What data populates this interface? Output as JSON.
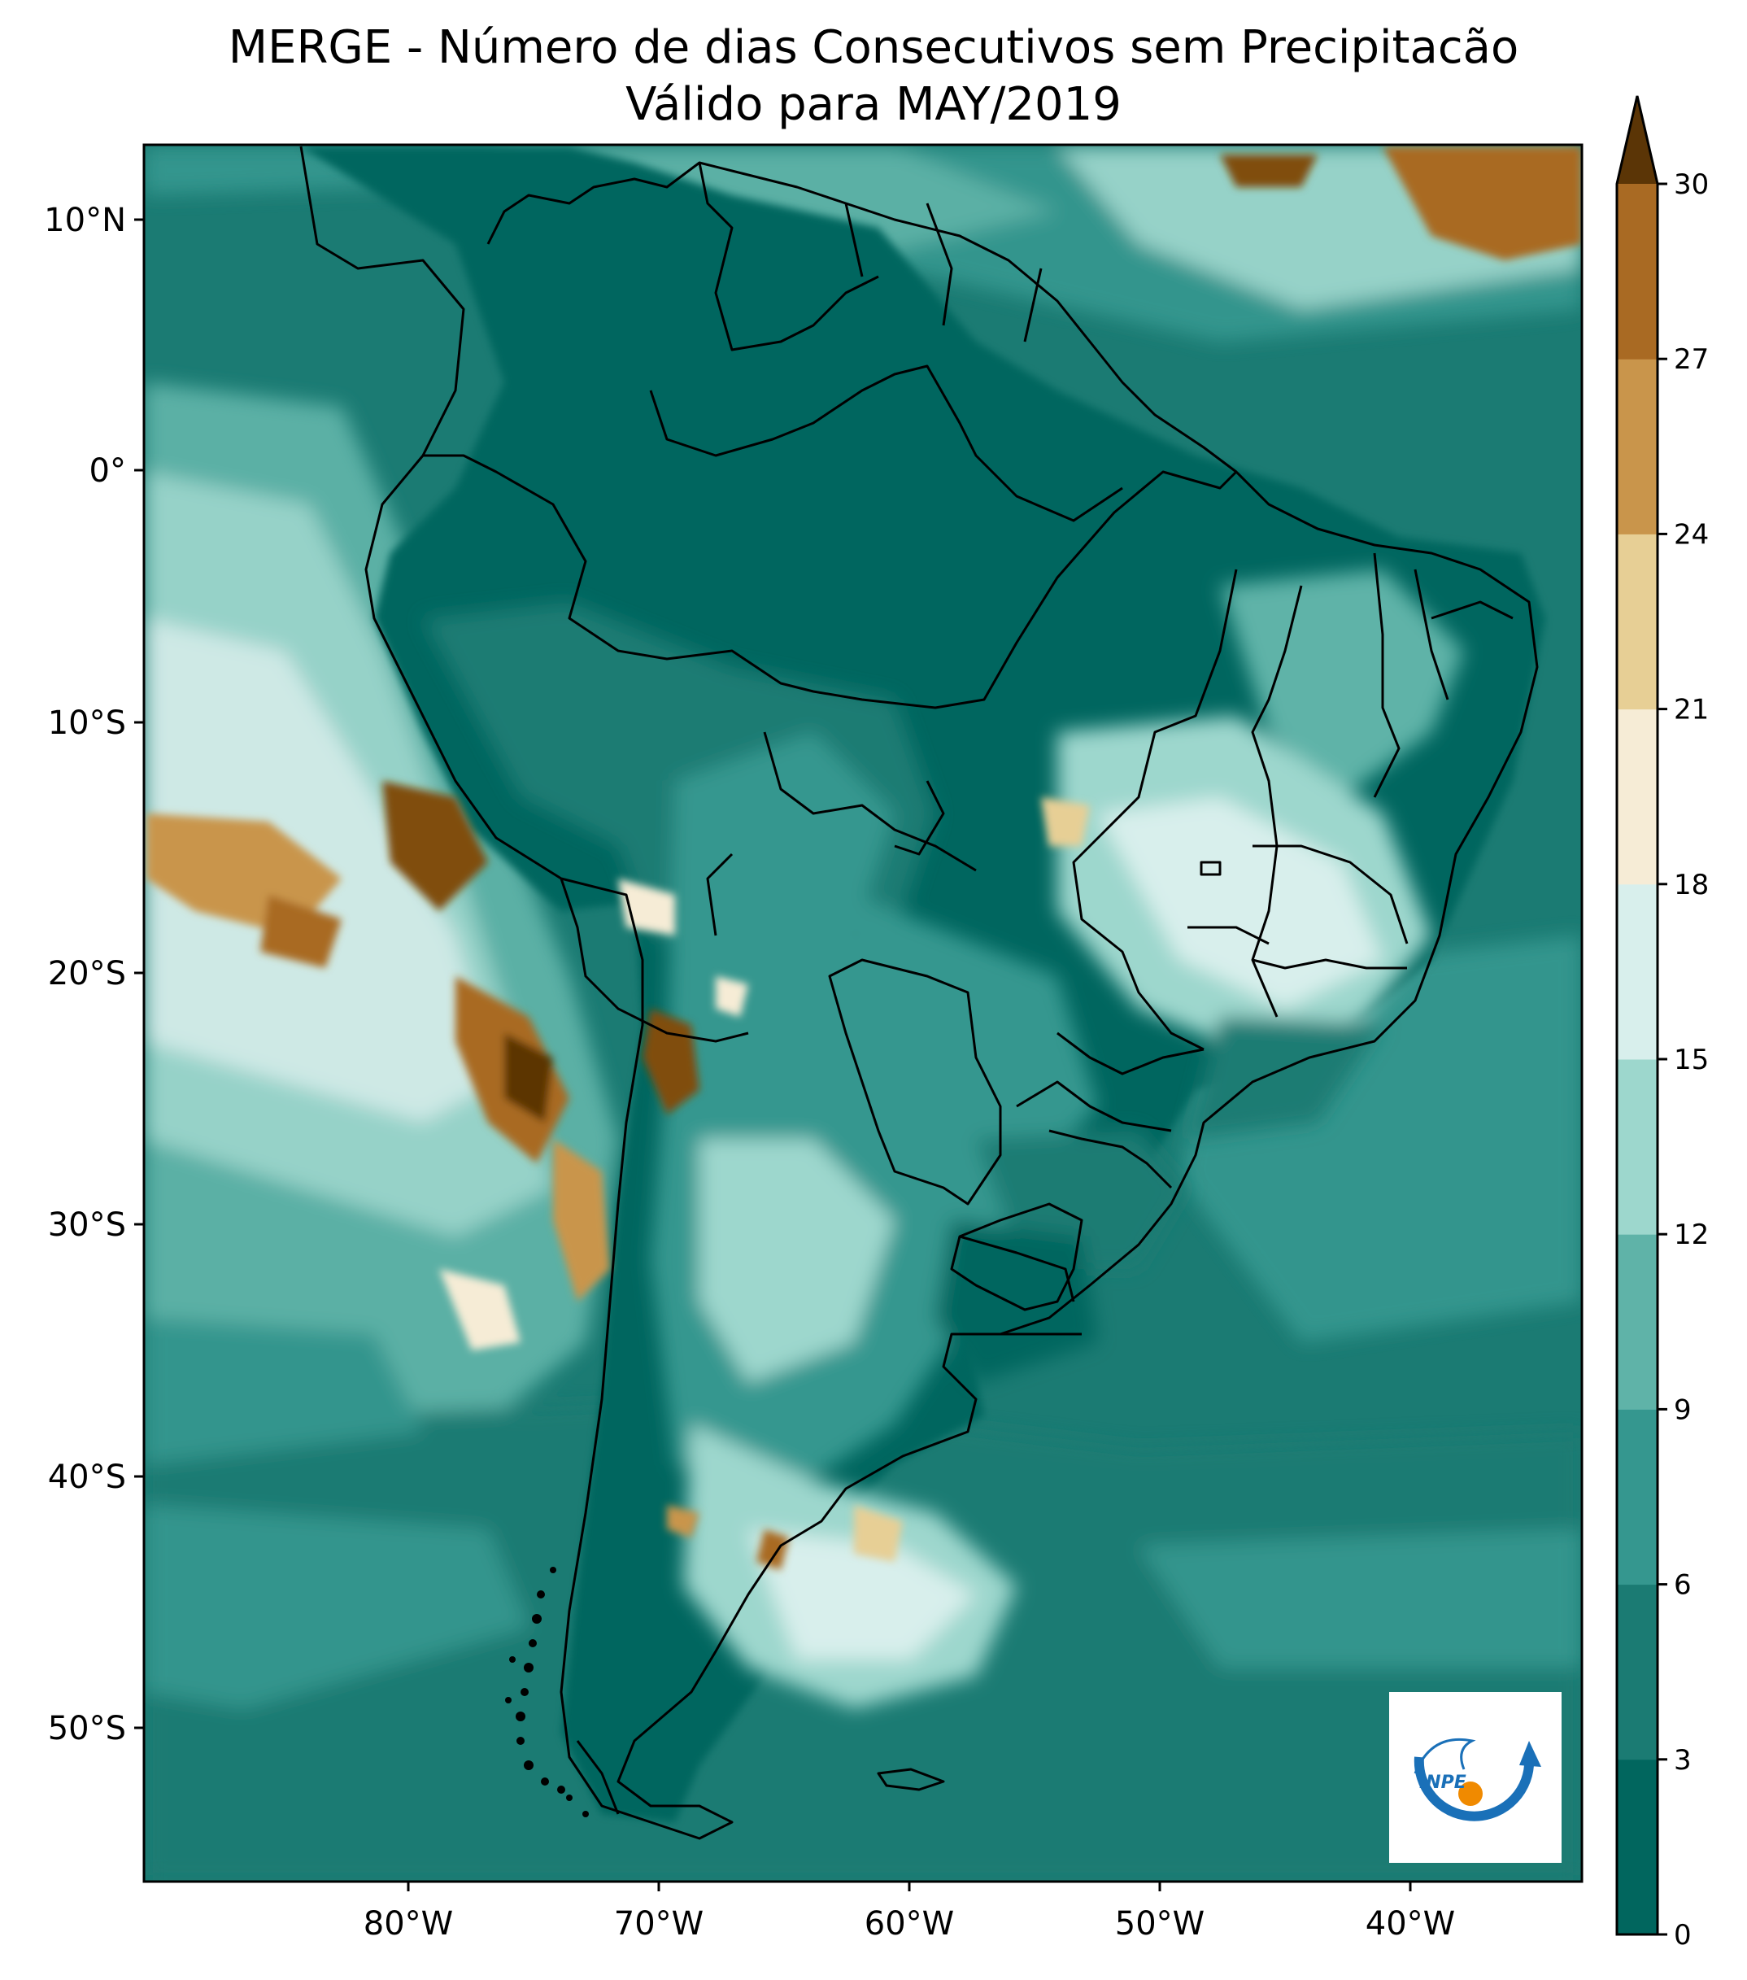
{
  "title_line1": "MERGE - Número de dias Consecutivos sem Precipitacão",
  "title_line2": "Válido para MAY/2019",
  "lat_labels": [
    "10°N",
    "0°",
    "10°S",
    "20°S",
    "30°S",
    "40°S",
    "50°S"
  ],
  "lon_labels": [
    "80°W",
    "70°W",
    "60°W",
    "50°W",
    "40°W"
  ],
  "colorbar": {
    "ticks": [
      "0",
      "3",
      "6",
      "9",
      "12",
      "15",
      "18",
      "21",
      "24",
      "27",
      "30"
    ],
    "colors": [
      "#01665e",
      "#1b7b73",
      "#35978f",
      "#5fb3a8",
      "#9dd7cd",
      "#d8efec",
      "#f6ecd6",
      "#e7cf95",
      "#c9954b",
      "#a96a23",
      "#804d10",
      "#5b3506"
    ],
    "extend": "max"
  },
  "logo": {
    "text": "INPE"
  }
}
